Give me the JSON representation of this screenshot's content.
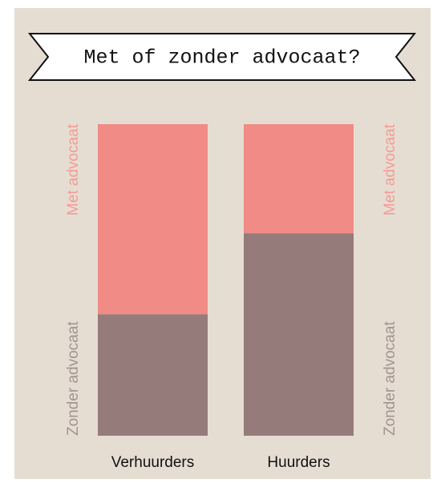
{
  "chart_data": {
    "type": "stacked-bar",
    "title": "Met of zonder advocaat?",
    "categories": [
      "Verhuurders",
      "Huurders"
    ],
    "series": [
      {
        "name": "Zonder advocaat",
        "color": "#967b7b",
        "values": [
          39,
          65
        ]
      },
      {
        "name": "Met advocaat",
        "color": "#f08b85",
        "values": [
          61,
          35
        ]
      }
    ],
    "ylim": [
      0,
      100
    ]
  }
}
